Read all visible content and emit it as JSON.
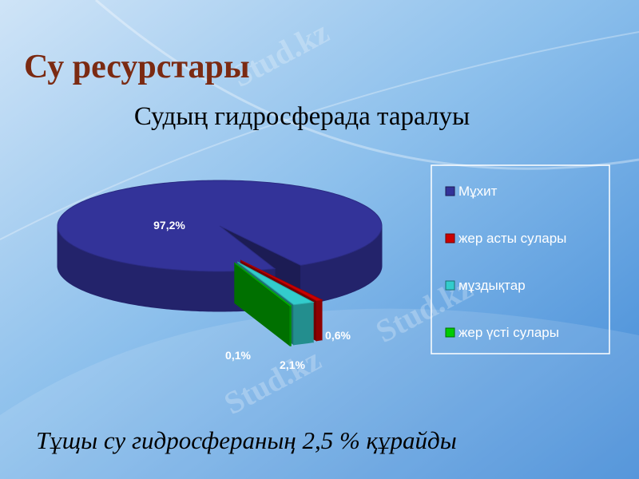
{
  "title": "Су ресурстары",
  "watermark": "Stud.kz",
  "note": "Тұщы су гидросфераның 2,5 % құрайды",
  "chart_data": {
    "type": "pie3d",
    "title": "Судың гидросферада таралуы",
    "categories": [
      "Мұхит",
      "жер асты сулары",
      "мұздықтар",
      "жер үсті сулары"
    ],
    "values": [
      97.2,
      0.6,
      2.1,
      0.1
    ],
    "value_labels": [
      "97,2%",
      "0,6%",
      "2,1%",
      "0,1%"
    ],
    "colors": [
      "#333399",
      "#cc0000",
      "#33cccc",
      "#00cc00"
    ],
    "legend": "right"
  }
}
